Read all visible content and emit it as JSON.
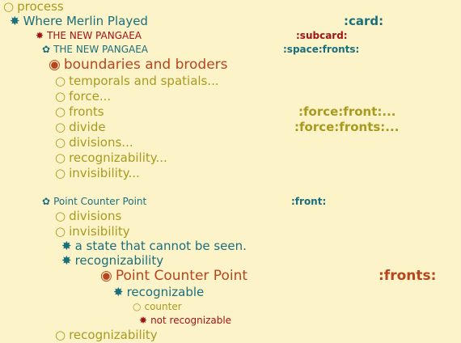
{
  "outline": {
    "root": {
      "icon": "○",
      "label": "process"
    },
    "card": {
      "icon": "✸",
      "label": "Where Merlin Played",
      "tag": ":card:"
    },
    "subcard": {
      "icon": "✸",
      "label": "THE NEW PANGAEA",
      "tag": ":subcard:"
    },
    "space": {
      "icon": "✿",
      "label": "THE NEW PANGAEA",
      "tag": ":space:fronts:"
    },
    "boundaries": {
      "icon": "◉",
      "label": "boundaries and broders"
    },
    "items1": [
      {
        "icon": "○",
        "label": "temporals and spatials...",
        "tag": ""
      },
      {
        "icon": "○",
        "label": "force...",
        "tag": ""
      },
      {
        "icon": "○",
        "label": "fronts",
        "tag": ":force:front:..."
      },
      {
        "icon": "○",
        "label": "divide",
        "tag": ":force:fronts:..."
      },
      {
        "icon": "○",
        "label": "divisions...",
        "tag": ""
      },
      {
        "icon": "○",
        "label": "recognizability...",
        "tag": ""
      },
      {
        "icon": "○",
        "label": "invisibility...",
        "tag": ""
      }
    ],
    "pcp": {
      "icon": "✿",
      "label": "Point Counter Point",
      "tag": ":front:"
    },
    "divisions": {
      "icon": "○",
      "label": "divisions"
    },
    "invisibility": {
      "icon": "○",
      "label": "invisibility"
    },
    "state": {
      "icon": "✸",
      "label": "a state that cannot be seen."
    },
    "recog": {
      "icon": "✸",
      "label": "recognizability"
    },
    "pcp2": {
      "icon": "◉",
      "label": "Point Counter Point",
      "tag": ":fronts:"
    },
    "recognizable": {
      "icon": "✸",
      "label": "recognizable"
    },
    "counter": {
      "icon": "○",
      "label": "counter"
    },
    "notrecog": {
      "icon": "✸",
      "label": "not recognizable"
    },
    "lastrecog": {
      "icon": "○",
      "label": "recognizability"
    }
  },
  "colors": {
    "background": "#fdf3c9",
    "olive": "#a89a1e",
    "teal": "#1a6f7d",
    "red": "#a01414",
    "orange": "#b5461e"
  }
}
